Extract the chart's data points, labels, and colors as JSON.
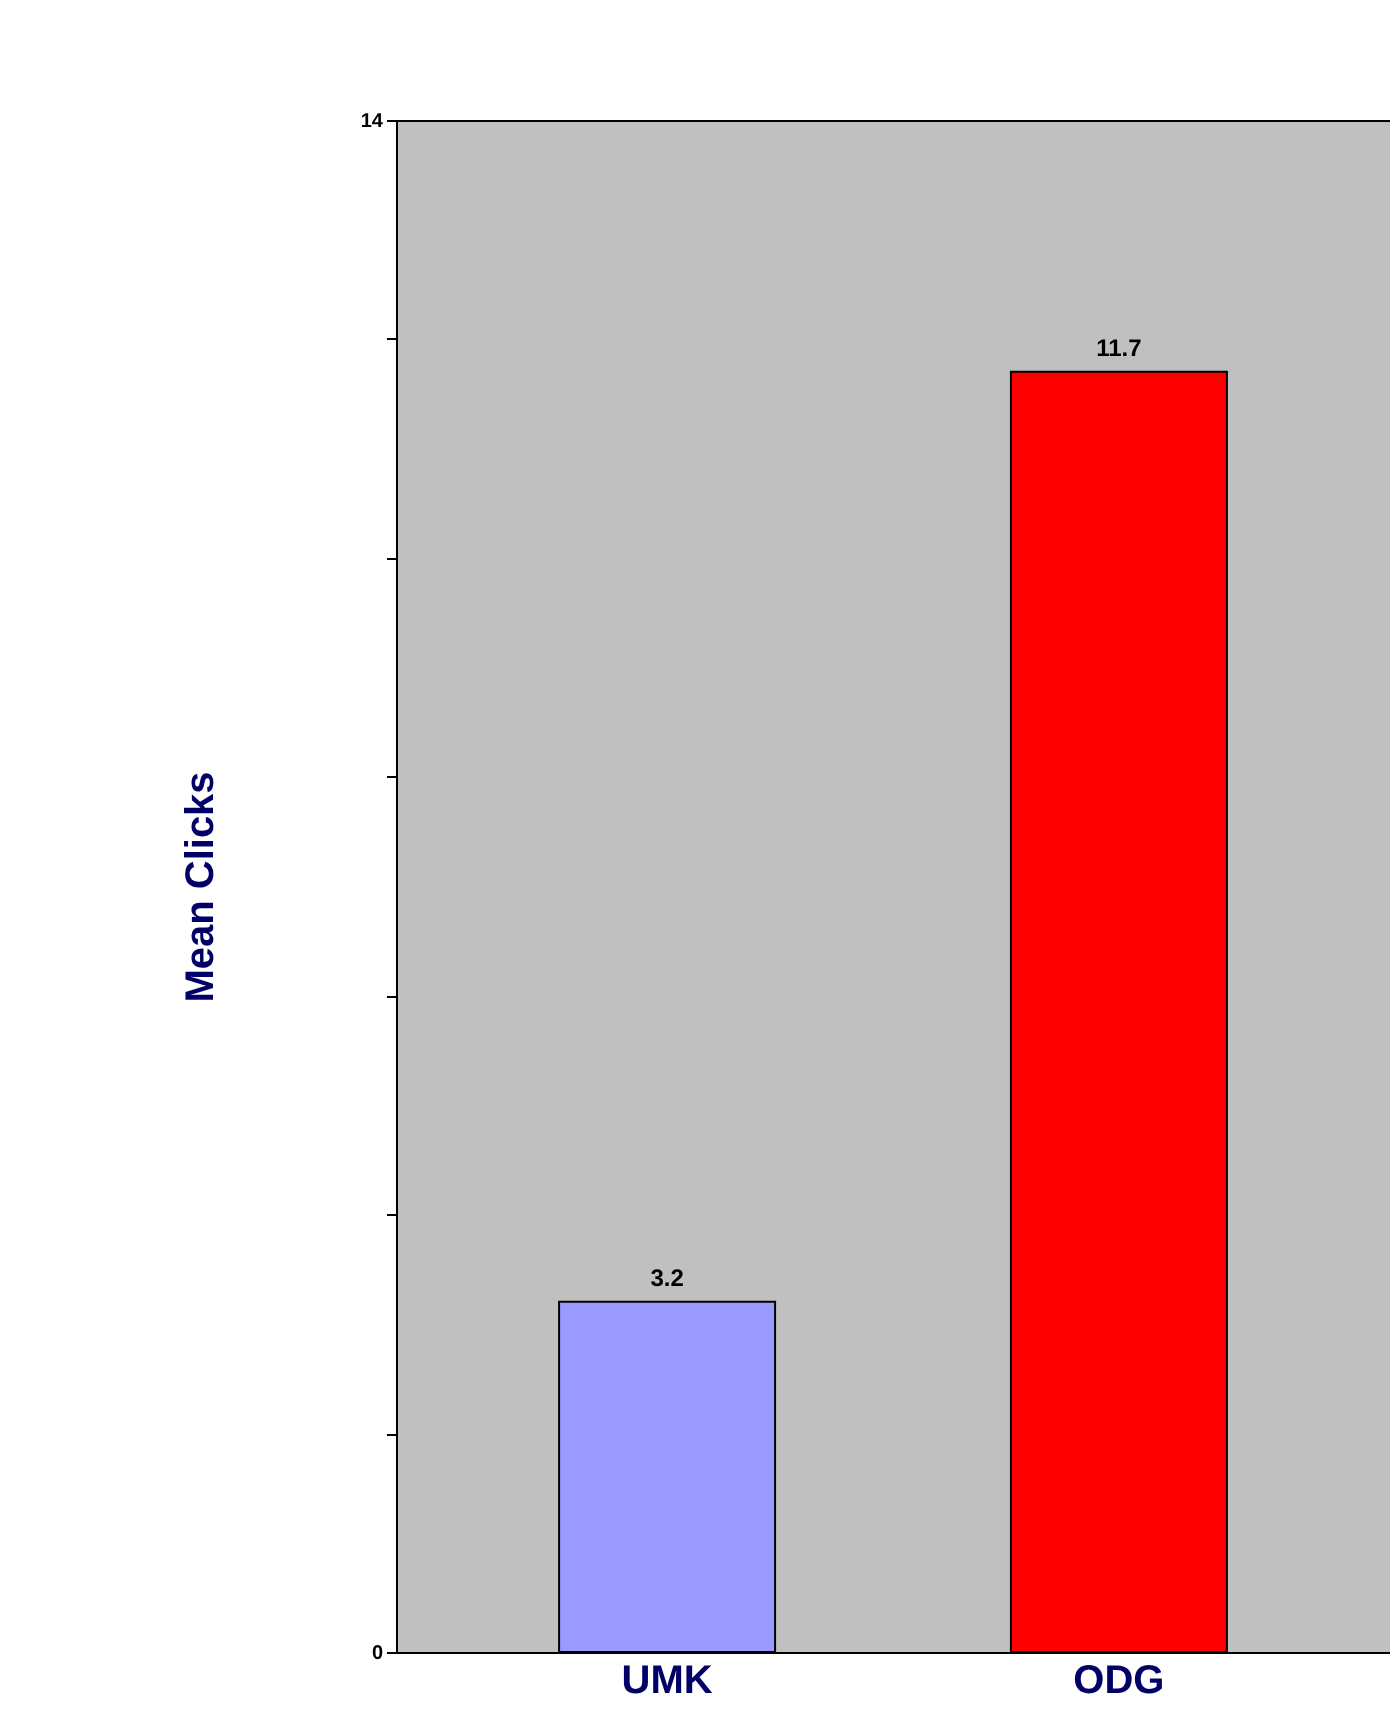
{
  "chart_data": {
    "type": "bar",
    "ylabel": "Mean Clicks",
    "categories": [
      "UMK",
      "ODG"
    ],
    "values": [
      3.2,
      11.7
    ],
    "colors": [
      "#9999ff",
      "#ff0000"
    ],
    "ylim": [
      0,
      14
    ],
    "yticks": [
      0,
      {
        "value": 2,
        "label": null
      },
      {
        "value": 4,
        "label": null
      },
      {
        "value": 6,
        "label": null
      },
      {
        "value": 8,
        "label": null
      },
      {
        "value": 10,
        "label": null
      },
      {
        "value": 12,
        "label": null
      },
      14
    ],
    "data_labels": true,
    "grid": false,
    "legend": false
  }
}
